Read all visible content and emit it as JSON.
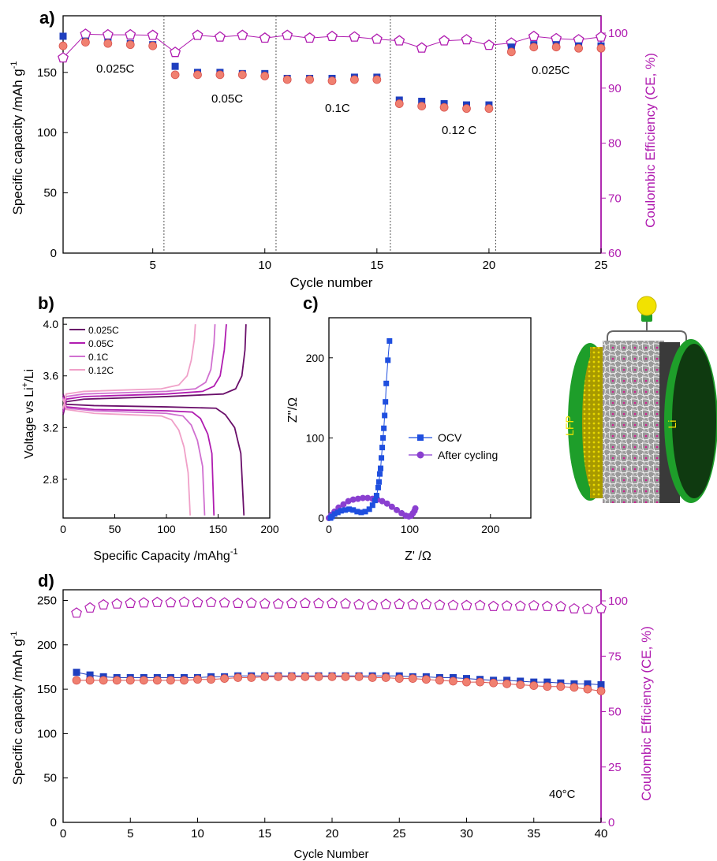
{
  "colors": {
    "charge": "#1f3fbf",
    "discharge": "#f08070",
    "discharge_edge": "#d9534f",
    "ce": "#b01cb0",
    "axis": "#000000",
    "ocv": "#1f4fdf",
    "after": "#8a3fd0",
    "cell_green": "#1e9e2a",
    "lfp_yellow": "#d8c400",
    "bulb": "#f2e200"
  },
  "panel_a": {
    "label": "a)",
    "xlabel": "Cycle number",
    "ylabel_left": "Specific capacity /mAh g",
    "ylabel_left_sup": "-1",
    "ylabel_right": "Coulombic Efficiency (CE, %)",
    "xticks": [
      "5",
      "10",
      "15",
      "20",
      "25"
    ],
    "yticks_left": [
      "0",
      "50",
      "100",
      "150"
    ],
    "yticks_right": [
      "60",
      "70",
      "80",
      "90",
      "100"
    ],
    "rates": [
      "0.025C",
      "0.05C",
      "0.1C",
      "0.12 C",
      "0.025C"
    ]
  },
  "panel_b": {
    "label": "b)",
    "xlabel": "Specific Capacity /mAhg",
    "xlabel_sup": "-1",
    "ylabel": "Voltage vs Li",
    "ylabel_sup": "+",
    "ylabel_tail": "/Li",
    "xticks": [
      "0",
      "50",
      "100",
      "150",
      "200"
    ],
    "yticks": [
      "2.8",
      "3.2",
      "3.6",
      "4.0"
    ],
    "legend": [
      "0.025C",
      "0.05C",
      "0.1C",
      "0.12C"
    ],
    "series_colors": [
      "#6a0f6a",
      "#b01cb0",
      "#d070d0",
      "#f0a0c8"
    ]
  },
  "panel_c": {
    "label": "c)",
    "xlabel": "Z' /Ω",
    "ylabel": "Z''/Ω",
    "xticks": [
      "0",
      "100",
      "200"
    ],
    "yticks": [
      "0",
      "100",
      "200"
    ],
    "legend": [
      "OCV",
      "After cycling"
    ]
  },
  "cell_labels": {
    "left": "LFP",
    "right": "Li"
  },
  "panel_d": {
    "label": "d)",
    "xlabel": "Cycle Number",
    "ylabel_left": "Specific capacity /mAh g",
    "ylabel_left_sup": "-1",
    "ylabel_right": "Coulombic Efficiency (CE, %)",
    "xticks": [
      "0",
      "5",
      "10",
      "15",
      "20",
      "25",
      "30",
      "35",
      "40"
    ],
    "yticks_left": [
      "0",
      "50",
      "100",
      "150",
      "200",
      "250"
    ],
    "yticks_right": [
      "0",
      "25",
      "50",
      "75",
      "100"
    ],
    "annotation": "40°C"
  },
  "chart_data": [
    {
      "type": "scatter",
      "panel": "a",
      "x": [
        1,
        2,
        3,
        4,
        5,
        6,
        7,
        8,
        9,
        10,
        11,
        12,
        13,
        14,
        15,
        16,
        17,
        18,
        19,
        20,
        21,
        22,
        23,
        24,
        25
      ],
      "xlim": [
        1,
        25
      ],
      "ylim": [
        0,
        197
      ],
      "y2lim": [
        60,
        100
      ],
      "rate_boundaries": [
        5.5,
        10.5,
        15.6,
        20.3
      ],
      "series": [
        {
          "name": "charge",
          "axis": "left",
          "values": [
            180,
            176,
            175,
            174,
            173,
            155,
            150,
            150,
            149,
            149,
            145,
            145,
            145,
            146,
            146,
            127,
            126,
            124,
            123,
            123,
            171,
            173,
            173,
            172,
            172
          ]
        },
        {
          "name": "discharge",
          "axis": "left",
          "values": [
            172,
            175,
            174,
            173,
            172,
            148,
            148,
            148,
            148,
            147,
            144,
            144,
            143,
            144,
            144,
            124,
            122,
            121,
            120,
            120,
            167,
            171,
            171,
            170,
            170
          ]
        },
        {
          "name": "CE",
          "axis": "right",
          "values": [
            95.5,
            99.8,
            99.7,
            99.7,
            99.6,
            96.5,
            99.6,
            99.3,
            99.6,
            99.1,
            99.6,
            99.1,
            99.4,
            99.3,
            98.9,
            98.6,
            97.3,
            98.6,
            98.8,
            97.8,
            98.2,
            99.4,
            99.0,
            98.8,
            99.3
          ]
        }
      ]
    },
    {
      "type": "line",
      "panel": "b",
      "xlim": [
        0,
        200
      ],
      "ylim": [
        2.5,
        4.05
      ],
      "series": [
        {
          "name": "0.025C",
          "charge": [
            [
              0,
              3.3
            ],
            [
              3,
              3.4
            ],
            [
              20,
              3.42
            ],
            [
              100,
              3.44
            ],
            [
              155,
              3.46
            ],
            [
              167,
              3.5
            ],
            [
              173,
              3.6
            ],
            [
              176,
              3.8
            ],
            [
              177,
              4.0
            ]
          ],
          "discharge": [
            [
              0,
              3.46
            ],
            [
              3,
              3.38
            ],
            [
              30,
              3.37
            ],
            [
              100,
              3.36
            ],
            [
              148,
              3.35
            ],
            [
              157,
              3.3
            ],
            [
              166,
              3.2
            ],
            [
              172,
              3.0
            ],
            [
              175,
              2.52
            ]
          ]
        },
        {
          "name": "0.05C",
          "charge": [
            [
              0,
              3.32
            ],
            [
              3,
              3.42
            ],
            [
              20,
              3.44
            ],
            [
              100,
              3.46
            ],
            [
              135,
              3.48
            ],
            [
              146,
              3.52
            ],
            [
              152,
              3.6
            ],
            [
              156,
              3.8
            ],
            [
              158,
              4.0
            ]
          ],
          "discharge": [
            [
              0,
              3.44
            ],
            [
              3,
              3.36
            ],
            [
              30,
              3.34
            ],
            [
              100,
              3.33
            ],
            [
              125,
              3.32
            ],
            [
              133,
              3.27
            ],
            [
              140,
              3.15
            ],
            [
              144,
              3.0
            ],
            [
              146,
              2.52
            ]
          ]
        },
        {
          "name": "0.1C",
          "charge": [
            [
              0,
              3.34
            ],
            [
              3,
              3.44
            ],
            [
              20,
              3.46
            ],
            [
              100,
              3.48
            ],
            [
              128,
              3.5
            ],
            [
              138,
              3.55
            ],
            [
              143,
              3.65
            ],
            [
              146,
              3.85
            ],
            [
              147,
              4.0
            ]
          ],
          "discharge": [
            [
              0,
              3.43
            ],
            [
              3,
              3.35
            ],
            [
              30,
              3.33
            ],
            [
              100,
              3.31
            ],
            [
              116,
              3.29
            ],
            [
              124,
              3.22
            ],
            [
              130,
              3.1
            ],
            [
              135,
              2.9
            ],
            [
              137,
              2.52
            ]
          ]
        },
        {
          "name": "0.12C",
          "charge": [
            [
              0,
              3.35
            ],
            [
              3,
              3.46
            ],
            [
              20,
              3.48
            ],
            [
              95,
              3.5
            ],
            [
              112,
              3.53
            ],
            [
              120,
              3.6
            ],
            [
              124,
              3.72
            ],
            [
              127,
              3.88
            ],
            [
              128,
              4.0
            ]
          ],
          "discharge": [
            [
              0,
              3.42
            ],
            [
              3,
              3.34
            ],
            [
              30,
              3.31
            ],
            [
              95,
              3.29
            ],
            [
              105,
              3.26
            ],
            [
              112,
              3.18
            ],
            [
              117,
              3.05
            ],
            [
              121,
              2.85
            ],
            [
              123,
              2.52
            ]
          ]
        }
      ]
    },
    {
      "type": "line",
      "panel": "c",
      "xlim": [
        0,
        250
      ],
      "ylim": [
        0,
        250
      ],
      "series": [
        {
          "name": "OCV",
          "points": [
            [
              2,
              0
            ],
            [
              4,
              2
            ],
            [
              7,
              5
            ],
            [
              11,
              7
            ],
            [
              15,
              9
            ],
            [
              20,
              10
            ],
            [
              25,
              11
            ],
            [
              30,
              10
            ],
            [
              35,
              8
            ],
            [
              40,
              7
            ],
            [
              45,
              8
            ],
            [
              50,
              11
            ],
            [
              54,
              16
            ],
            [
              57,
              22
            ],
            [
              59,
              28
            ],
            [
              61,
              38
            ],
            [
              62,
              45
            ],
            [
              63,
              55
            ],
            [
              64,
              62
            ],
            [
              65,
              75
            ],
            [
              66,
              88
            ],
            [
              67,
              100
            ],
            [
              68,
              112
            ],
            [
              69,
              128
            ],
            [
              70,
              145
            ],
            [
              71,
              168
            ],
            [
              73,
              197
            ],
            [
              75,
              221
            ]
          ]
        },
        {
          "name": "After cycling",
          "points": [
            [
              0,
              0
            ],
            [
              3,
              4
            ],
            [
              7,
              8
            ],
            [
              12,
              13
            ],
            [
              18,
              17
            ],
            [
              24,
              21
            ],
            [
              30,
              23
            ],
            [
              36,
              24
            ],
            [
              42,
              25
            ],
            [
              48,
              25
            ],
            [
              54,
              24
            ],
            [
              60,
              23
            ],
            [
              66,
              21
            ],
            [
              72,
              18
            ],
            [
              78,
              14
            ],
            [
              84,
              10
            ],
            [
              90,
              6
            ],
            [
              95,
              3
            ],
            [
              99,
              2
            ],
            [
              102,
              3
            ],
            [
              104,
              6
            ],
            [
              106,
              9
            ],
            [
              107,
              12
            ]
          ]
        }
      ]
    },
    {
      "type": "scatter",
      "panel": "d",
      "x": [
        1,
        2,
        3,
        4,
        5,
        6,
        7,
        8,
        9,
        10,
        11,
        12,
        13,
        14,
        15,
        16,
        17,
        18,
        19,
        20,
        21,
        22,
        23,
        24,
        25,
        26,
        27,
        28,
        29,
        30,
        31,
        32,
        33,
        34,
        35,
        36,
        37,
        38,
        39,
        40
      ],
      "xlim": [
        0,
        40
      ],
      "ylim": [
        0,
        262
      ],
      "y2lim": [
        0,
        105
      ],
      "series": [
        {
          "name": "charge",
          "axis": "left",
          "values": [
            169,
            166,
            164,
            163,
            163,
            163,
            163,
            163,
            163,
            163,
            164,
            164,
            165,
            165,
            165,
            165,
            165,
            165,
            165,
            165,
            165,
            165,
            165,
            165,
            165,
            164,
            164,
            163,
            163,
            162,
            161,
            160,
            160,
            159,
            158,
            158,
            157,
            156,
            156,
            155
          ]
        },
        {
          "name": "discharge",
          "axis": "left",
          "values": [
            160,
            160,
            160,
            160,
            160,
            160,
            160,
            160,
            160,
            161,
            161,
            162,
            163,
            163,
            164,
            164,
            164,
            164,
            164,
            164,
            164,
            164,
            163,
            163,
            162,
            162,
            161,
            160,
            159,
            158,
            158,
            157,
            156,
            155,
            154,
            153,
            153,
            152,
            150,
            148
          ]
        },
        {
          "name": "CE",
          "axis": "right",
          "values": [
            94.5,
            96.8,
            98.2,
            98.6,
            98.9,
            99.1,
            99.3,
            99.2,
            99.4,
            99.2,
            99.3,
            99.1,
            98.9,
            99.0,
            98.7,
            98.6,
            98.8,
            98.9,
            98.8,
            98.8,
            98.7,
            98.3,
            98.1,
            98.4,
            98.5,
            98.3,
            98.4,
            98.1,
            98.0,
            97.9,
            97.9,
            97.5,
            97.7,
            97.6,
            97.8,
            97.5,
            97.4,
            96.4,
            96.2,
            96.5
          ]
        }
      ]
    }
  ]
}
